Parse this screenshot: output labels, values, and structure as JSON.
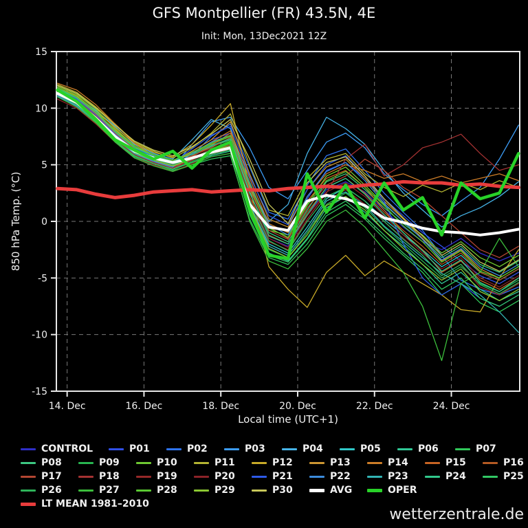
{
  "header": {
    "title": "GFS Montpellier (FR) 43.5N, 4E",
    "subtitle": "Init: Mon, 13Dec2021 12Z"
  },
  "watermark": "wetterzentrale.de",
  "legend_rows": [
    [
      "CONTROL",
      "P01",
      "P02",
      "P03",
      "P04",
      "P05",
      "P06",
      "P07"
    ],
    [
      "P08",
      "P09",
      "P10",
      "P11",
      "P12",
      "P13",
      "P14",
      "P15",
      "P16"
    ],
    [
      "P17",
      "P18",
      "P19",
      "P20",
      "P21",
      "P22",
      "P23",
      "P24",
      "P25"
    ],
    [
      "P26",
      "P27",
      "P28",
      "P29",
      "P30",
      "AVG",
      "OPER"
    ],
    [
      "LT MEAN 1981–2010"
    ]
  ],
  "chart_data": {
    "type": "line",
    "title": "GFS Montpellier (FR) 43.5N, 4E",
    "subtitle": "Init: Mon, 13Dec2021 12Z",
    "xlabel": "Local time (UTC+1)",
    "ylabel": "850 hPa Temp. (°C)",
    "xlim": [
      13.72,
      25.78
    ],
    "ylim": [
      -15,
      15
    ],
    "grid": true,
    "legend_position": "bottom",
    "xticks": [
      {
        "value": 14,
        "label": "14. Dec"
      },
      {
        "value": 16,
        "label": "16. Dec"
      },
      {
        "value": 18,
        "label": "18. Dec"
      },
      {
        "value": 20,
        "label": "20. Dec"
      },
      {
        "value": 22,
        "label": "22. Dec"
      },
      {
        "value": 24,
        "label": "24. Dec"
      }
    ],
    "yticks": [
      {
        "value": 15,
        "label": "15"
      },
      {
        "value": 10,
        "label": "10"
      },
      {
        "value": 5,
        "label": "5"
      },
      {
        "value": 0,
        "label": "0"
      },
      {
        "value": -5,
        "label": "-5"
      },
      {
        "value": -10,
        "label": "-10"
      },
      {
        "value": -15,
        "label": "-15"
      }
    ],
    "x": [
      13.75,
      14.25,
      14.75,
      15.25,
      15.75,
      16.25,
      16.75,
      17.25,
      17.75,
      18.25,
      18.75,
      19.25,
      19.75,
      20.25,
      20.75,
      21.25,
      21.75,
      22.25,
      22.75,
      23.25,
      23.75,
      24.25,
      24.75,
      25.25,
      25.75
    ],
    "series": [
      {
        "name": "CONTROL",
        "color": "#2e2ec8",
        "width": 1.3,
        "values": [
          11.4,
          10.6,
          9.2,
          7.6,
          6.4,
          5.8,
          5.2,
          5.6,
          6.1,
          6.6,
          2.0,
          -1.5,
          -2.2,
          0.5,
          2.8,
          3.5,
          2.6,
          1.0,
          -0.5,
          -1.8,
          -2.5,
          -1.5,
          -2.8,
          -3.5,
          -2.8
        ]
      },
      {
        "name": "P01",
        "color": "#3050e8",
        "width": 1.3,
        "values": [
          11.2,
          10.3,
          9.0,
          7.8,
          6.6,
          5.6,
          5.0,
          6.2,
          7.2,
          7.8,
          3.5,
          -0.5,
          -1.5,
          2.0,
          4.5,
          5.2,
          3.8,
          2.0,
          0.5,
          -1.0,
          -2.2,
          -3.5,
          -4.8,
          -5.5,
          -4.5
        ]
      },
      {
        "name": "P02",
        "color": "#2e74f0",
        "width": 1.3,
        "values": [
          11.6,
          10.8,
          9.5,
          8.0,
          6.2,
          5.4,
          4.6,
          5.8,
          7.5,
          8.6,
          4.8,
          0.8,
          0.2,
          3.2,
          5.8,
          6.4,
          4.5,
          2.5,
          0.8,
          -0.8,
          -3.0,
          -5.2,
          -6.0,
          -6.5,
          -5.8
        ]
      },
      {
        "name": "P03",
        "color": "#3c9cf5",
        "width": 1.3,
        "values": [
          11.0,
          10.2,
          8.8,
          7.2,
          6.0,
          5.2,
          4.8,
          6.8,
          8.8,
          9.2,
          6.5,
          3.0,
          2.0,
          4.5,
          7.0,
          7.8,
          6.5,
          4.2,
          2.8,
          1.5,
          0.5,
          1.8,
          3.0,
          5.5,
          8.5
        ]
      },
      {
        "name": "P04",
        "color": "#46b4e8",
        "width": 1.3,
        "values": [
          11.8,
          11.0,
          9.8,
          8.4,
          6.8,
          6.0,
          5.5,
          7.2,
          9.0,
          8.2,
          3.0,
          0.0,
          1.5,
          6.0,
          9.2,
          8.2,
          6.8,
          4.5,
          2.5,
          1.0,
          -0.5,
          0.5,
          1.2,
          2.2,
          3.5
        ]
      },
      {
        "name": "P05",
        "color": "#30c8c8",
        "width": 1.3,
        "values": [
          11.3,
          10.5,
          9.3,
          7.5,
          6.1,
          5.5,
          4.9,
          5.4,
          6.4,
          7.0,
          1.5,
          -2.0,
          -2.8,
          -0.5,
          2.0,
          3.0,
          1.8,
          0.2,
          -1.2,
          -2.5,
          -4.0,
          -3.0,
          -4.5,
          -5.2,
          -4.2
        ]
      },
      {
        "name": "P06",
        "color": "#30c896",
        "width": 1.3,
        "values": [
          11.5,
          10.7,
          9.1,
          7.3,
          5.9,
          5.3,
          4.7,
          5.2,
          5.8,
          6.2,
          0.8,
          -2.8,
          -3.5,
          -1.5,
          1.2,
          2.2,
          0.8,
          -0.8,
          -2.2,
          -3.8,
          -5.5,
          -4.5,
          -6.0,
          -7.0,
          -6.2
        ]
      },
      {
        "name": "P07",
        "color": "#30c85a",
        "width": 1.3,
        "values": [
          11.1,
          10.1,
          8.7,
          7.0,
          5.7,
          5.0,
          4.5,
          5.0,
          5.5,
          5.8,
          0.2,
          -3.2,
          -3.8,
          -2.0,
          0.5,
          1.5,
          0.2,
          -1.5,
          -3.0,
          -4.5,
          -6.5,
          -5.5,
          -7.2,
          -8.0,
          -7.0
        ]
      },
      {
        "name": "P08",
        "color": "#3cc882",
        "width": 1.3,
        "values": [
          11.7,
          10.9,
          9.4,
          7.7,
          6.3,
          5.7,
          5.1,
          5.8,
          6.6,
          7.2,
          2.5,
          -1.0,
          -1.8,
          1.0,
          3.5,
          4.2,
          2.8,
          1.2,
          -0.2,
          -1.5,
          -3.2,
          -2.2,
          -3.8,
          -4.5,
          -3.5
        ]
      },
      {
        "name": "P09",
        "color": "#28b450",
        "width": 1.3,
        "values": [
          11.2,
          10.4,
          8.9,
          7.1,
          5.8,
          5.1,
          4.6,
          5.3,
          6.0,
          6.5,
          1.2,
          -2.5,
          -3.2,
          -1.0,
          1.5,
          2.5,
          1.2,
          -0.5,
          -2.0,
          -3.5,
          -5.0,
          -4.0,
          -5.5,
          -6.2,
          -5.2
        ]
      },
      {
        "name": "P10",
        "color": "#6ec832",
        "width": 1.3,
        "values": [
          11.9,
          11.2,
          9.9,
          8.2,
          6.7,
          5.9,
          5.4,
          6.0,
          6.8,
          7.5,
          3.0,
          -0.8,
          -1.2,
          1.5,
          4.0,
          4.8,
          3.2,
          1.5,
          0.0,
          -1.2,
          -2.8,
          -1.8,
          -3.2,
          -4.0,
          -3.0
        ]
      },
      {
        "name": "P11",
        "color": "#b4b432",
        "width": 1.3,
        "values": [
          12.1,
          11.4,
          10.1,
          8.6,
          7.0,
          6.2,
          5.6,
          6.5,
          7.8,
          9.5,
          5.0,
          1.0,
          0.5,
          3.8,
          5.5,
          6.0,
          4.2,
          3.0,
          2.2,
          3.2,
          2.6,
          3.4,
          2.8,
          3.6,
          3.0
        ]
      },
      {
        "name": "P12",
        "color": "#c8aa28",
        "width": 1.3,
        "values": [
          11.8,
          11.1,
          9.7,
          8.3,
          6.9,
          6.1,
          5.7,
          6.8,
          8.5,
          10.4,
          3.0,
          -4.0,
          -6.0,
          -7.6,
          -4.5,
          -3.0,
          -4.8,
          -3.5,
          -4.5,
          -5.5,
          -6.5,
          -7.8,
          -8.0,
          -5.0,
          -2.5
        ]
      },
      {
        "name": "P13",
        "color": "#cd9632",
        "width": 1.3,
        "values": [
          11.5,
          10.8,
          9.6,
          8.1,
          6.6,
          5.8,
          5.3,
          6.2,
          7.2,
          8.8,
          4.2,
          0.2,
          -0.5,
          2.8,
          4.8,
          5.5,
          3.8,
          1.8,
          0.2,
          -1.5,
          -3.5,
          -2.5,
          -4.2,
          -5.0,
          -4.0
        ]
      },
      {
        "name": "P14",
        "color": "#cd7d28",
        "width": 1.3,
        "values": [
          12.2,
          11.6,
          10.3,
          8.6,
          6.9,
          5.8,
          5.3,
          6.0,
          7.0,
          8.0,
          3.8,
          -0.2,
          -1.0,
          2.2,
          4.2,
          5.0,
          4.5,
          3.8,
          4.2,
          3.5,
          4.0,
          3.4,
          3.8,
          4.2,
          3.6
        ]
      },
      {
        "name": "P15",
        "color": "#c86423",
        "width": 1.3,
        "values": [
          11.6,
          10.9,
          9.5,
          7.8,
          6.4,
          5.5,
          5.0,
          5.7,
          6.7,
          7.8,
          3.2,
          -0.5,
          -1.5,
          1.8,
          3.8,
          4.5,
          3.0,
          1.0,
          -1.0,
          -2.5,
          -4.5,
          -3.5,
          -5.2,
          -6.0,
          -5.0
        ]
      },
      {
        "name": "P16",
        "color": "#b45a23",
        "width": 1.3,
        "values": [
          11.3,
          10.5,
          9.0,
          7.4,
          6.0,
          5.4,
          4.8,
          5.5,
          6.3,
          7.0,
          2.2,
          -1.2,
          -2.0,
          0.8,
          3.0,
          3.8,
          2.5,
          0.8,
          -0.8,
          -2.2,
          -3.8,
          -2.8,
          -4.5,
          -5.2,
          -4.2
        ]
      },
      {
        "name": "P17",
        "color": "#b44632",
        "width": 1.3,
        "values": [
          11.5,
          10.7,
          9.3,
          7.6,
          6.2,
          5.6,
          5.1,
          5.8,
          6.5,
          7.4,
          2.8,
          -0.8,
          -1.6,
          1.2,
          3.2,
          4.0,
          5.5,
          4.5,
          3.0,
          2.0,
          0.5,
          -1.0,
          -2.5,
          -3.2,
          -2.2
        ]
      },
      {
        "name": "P18",
        "color": "#a53232",
        "width": 1.3,
        "values": [
          11.2,
          10.3,
          8.8,
          7.2,
          5.9,
          5.2,
          4.7,
          5.4,
          6.2,
          6.8,
          1.8,
          -1.8,
          -2.5,
          0.2,
          2.5,
          5.5,
          6.8,
          4.0,
          5.0,
          6.5,
          7.0,
          7.7,
          6.0,
          4.5,
          5.0
        ]
      },
      {
        "name": "P19",
        "color": "#962828",
        "width": 1.3,
        "values": [
          10.8,
          10.0,
          8.6,
          7.0,
          5.6,
          5.0,
          4.4,
          5.1,
          5.9,
          6.4,
          1.0,
          -2.2,
          -3.0,
          -0.8,
          1.8,
          2.8,
          1.5,
          0.0,
          -1.5,
          -3.0,
          -4.8,
          -3.8,
          -5.8,
          -6.5,
          -5.5
        ]
      },
      {
        "name": "P20",
        "color": "#8c2328",
        "width": 1.3,
        "values": [
          11.4,
          10.5,
          9.1,
          7.5,
          6.1,
          5.4,
          4.9,
          5.6,
          6.4,
          7.1,
          2.0,
          -1.5,
          -2.3,
          0.5,
          2.6,
          3.4,
          2.2,
          0.5,
          -1.2,
          -2.8,
          -4.2,
          -3.2,
          -5.0,
          -5.8,
          -4.8
        ]
      },
      {
        "name": "P21",
        "color": "#2e5ae8",
        "width": 1.3,
        "values": [
          11.6,
          10.8,
          9.4,
          7.7,
          6.3,
          5.7,
          5.2,
          6.4,
          7.6,
          8.4,
          4.0,
          0.5,
          -0.3,
          2.8,
          5.0,
          5.8,
          4.0,
          1.8,
          -2.0,
          -5.0,
          -6.5,
          -5.5,
          -6.8,
          -7.5,
          -6.5
        ]
      },
      {
        "name": "P22",
        "color": "#3c8cdc",
        "width": 1.3,
        "values": [
          11.1,
          10.2,
          8.9,
          7.3,
          6.0,
          5.3,
          4.8,
          6.0,
          7.0,
          7.6,
          3.3,
          -0.3,
          -1.2,
          2.2,
          4.4,
          5.2,
          3.6,
          1.6,
          0.0,
          -1.6,
          -3.4,
          -2.4,
          -4.0,
          -4.8,
          -3.8
        ]
      },
      {
        "name": "P23",
        "color": "#32b4b4",
        "width": 1.3,
        "values": [
          11.3,
          10.4,
          9.0,
          7.4,
          6.0,
          5.4,
          4.9,
          5.5,
          6.2,
          6.9,
          1.6,
          -2.2,
          -3.0,
          -0.8,
          1.8,
          2.6,
          1.4,
          -0.4,
          -1.8,
          -3.2,
          -4.6,
          -5.5,
          -6.5,
          -8.0,
          -9.8
        ]
      },
      {
        "name": "P24",
        "color": "#32c88c",
        "width": 1.3,
        "values": [
          11.7,
          10.9,
          9.6,
          7.9,
          6.5,
          5.8,
          5.3,
          5.9,
          6.7,
          7.3,
          2.6,
          -1.3,
          -2.0,
          0.6,
          3.0,
          3.8,
          2.4,
          0.6,
          -1.0,
          -2.6,
          -4.4,
          -3.4,
          -5.4,
          -6.2,
          -5.0
        ]
      },
      {
        "name": "P25",
        "color": "#32c864",
        "width": 1.3,
        "values": [
          11.2,
          10.3,
          8.8,
          7.1,
          5.8,
          5.1,
          4.6,
          5.2,
          5.9,
          6.3,
          0.6,
          -3.0,
          -3.6,
          -1.6,
          0.8,
          1.8,
          0.4,
          -1.2,
          -2.8,
          -4.2,
          -6.0,
          -5.0,
          -6.8,
          -7.5,
          -6.5
        ]
      },
      {
        "name": "P26",
        "color": "#2eb45a",
        "width": 1.3,
        "values": [
          11.5,
          10.6,
          9.2,
          7.5,
          6.2,
          5.5,
          5.0,
          5.6,
          6.3,
          6.9,
          1.9,
          -1.7,
          -2.6,
          0.0,
          2.2,
          3.0,
          1.8,
          0.0,
          -1.6,
          -3.0,
          -4.8,
          -3.8,
          -5.6,
          -6.4,
          -5.4
        ]
      },
      {
        "name": "P27",
        "color": "#3cbe3c",
        "width": 1.3,
        "values": [
          11.0,
          10.1,
          8.7,
          7.0,
          5.6,
          4.9,
          4.4,
          5.0,
          5.7,
          6.0,
          0.0,
          -3.5,
          -4.2,
          -2.4,
          0.0,
          1.0,
          -0.5,
          -2.5,
          -4.5,
          -7.5,
          -12.3,
          -5.5,
          -4.5,
          -1.5,
          -4.0
        ]
      },
      {
        "name": "P28",
        "color": "#5ac832",
        "width": 1.3,
        "values": [
          11.8,
          11.0,
          9.7,
          8.0,
          6.6,
          5.9,
          5.4,
          6.1,
          6.9,
          7.6,
          3.4,
          -0.6,
          -1.4,
          1.4,
          3.6,
          4.4,
          3.0,
          1.4,
          -0.4,
          -1.8,
          -3.6,
          -2.6,
          -4.4,
          -5.0,
          -4.0
        ]
      },
      {
        "name": "P29",
        "color": "#8cc832",
        "width": 1.3,
        "values": [
          11.4,
          10.5,
          9.1,
          7.4,
          6.1,
          5.4,
          4.9,
          5.5,
          6.2,
          6.7,
          1.4,
          -2.4,
          -3.2,
          -1.2,
          1.4,
          2.2,
          1.0,
          -0.8,
          -2.4,
          -3.8,
          -5.2,
          -4.2,
          -6.2,
          -7.0,
          -6.0
        ]
      },
      {
        "name": "P30",
        "color": "#c8c85a",
        "width": 1.3,
        "values": [
          12.0,
          11.3,
          10.0,
          8.5,
          7.1,
          6.3,
          5.8,
          6.6,
          7.7,
          9.0,
          5.5,
          1.5,
          -0.2,
          3.4,
          5.2,
          5.7,
          4.0,
          2.0,
          0.3,
          -1.3,
          -3.0,
          -2.0,
          -3.6,
          -4.4,
          -3.4
        ]
      },
      {
        "name": "LT MEAN 1981–2010",
        "color": "#e83c3c",
        "width": 5,
        "values": [
          2.9,
          2.8,
          2.4,
          2.1,
          2.3,
          2.6,
          2.7,
          2.8,
          2.6,
          2.7,
          2.8,
          2.7,
          2.9,
          3.0,
          3.1,
          3.0,
          3.2,
          3.3,
          3.5,
          3.4,
          3.4,
          3.2,
          3.3,
          3.1,
          3.0
        ]
      },
      {
        "name": "AVG",
        "color": "#ffffff",
        "width": 4,
        "values": [
          11.3,
          10.5,
          9.1,
          7.5,
          6.2,
          5.6,
          5.2,
          5.6,
          6.1,
          6.5,
          1.5,
          -0.5,
          -0.8,
          1.8,
          2.3,
          2.0,
          1.4,
          0.3,
          -0.1,
          -0.6,
          -0.9,
          -1.0,
          -1.2,
          -1.0,
          -0.7
        ]
      },
      {
        "name": "OPER",
        "color": "#28d228",
        "width": 4.5,
        "values": [
          11.6,
          10.6,
          9.0,
          7.2,
          6.3,
          5.5,
          6.2,
          4.7,
          6.3,
          7.0,
          1.0,
          -3.0,
          -3.3,
          4.2,
          0.8,
          3.2,
          0.3,
          3.4,
          1.0,
          2.1,
          -1.2,
          3.4,
          2.0,
          2.5,
          6.0
        ]
      }
    ]
  }
}
